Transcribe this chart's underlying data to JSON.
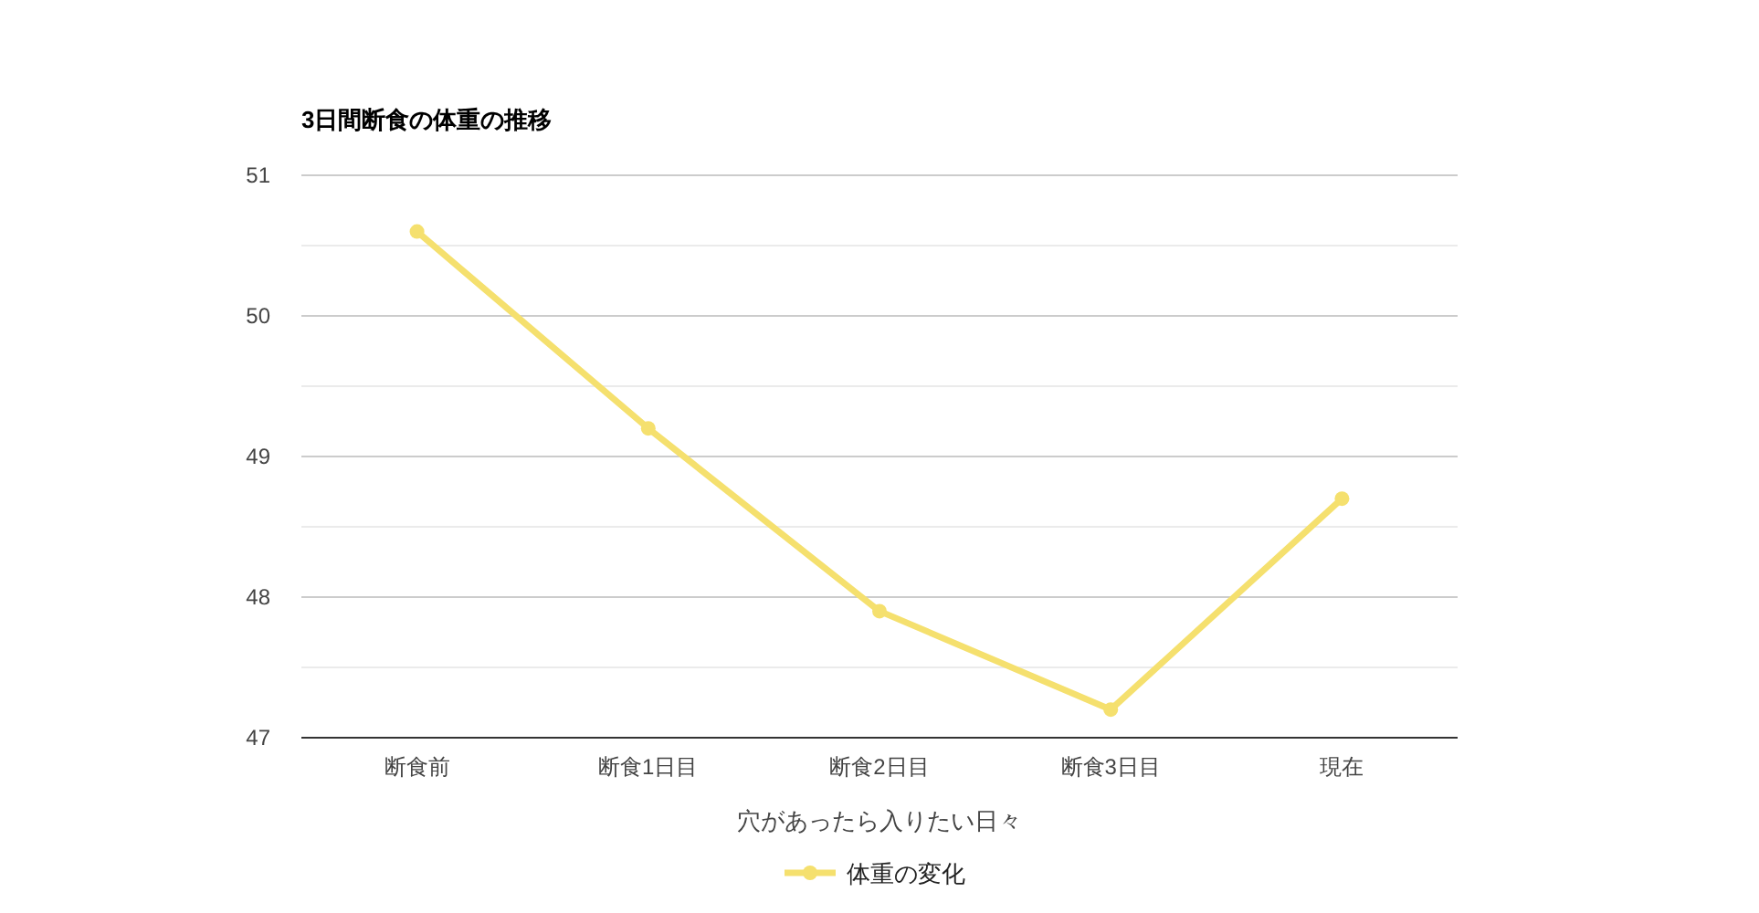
{
  "chart_data": {
    "type": "line",
    "title": "3日間断食の体重の推移",
    "xlabel": "穴があったら入りたい日々",
    "categories": [
      "断食前",
      "断食1日目",
      "断食2日目",
      "断食3日目",
      "現在"
    ],
    "series": [
      {
        "name": "体重の変化",
        "color": "#f5e06e",
        "values": [
          50.6,
          49.2,
          47.9,
          47.2,
          48.7
        ]
      }
    ],
    "ylim": [
      47,
      51
    ],
    "yticks": [
      47,
      {
        "value": 47.5,
        "label": null
      },
      48,
      {
        "value": 48.5,
        "label": null
      },
      49,
      {
        "value": 49.5,
        "label": null
      },
      50,
      {
        "value": 50.5,
        "label": null
      },
      51
    ],
    "grid": "y",
    "legend": "bottom",
    "marker": "circle"
  }
}
